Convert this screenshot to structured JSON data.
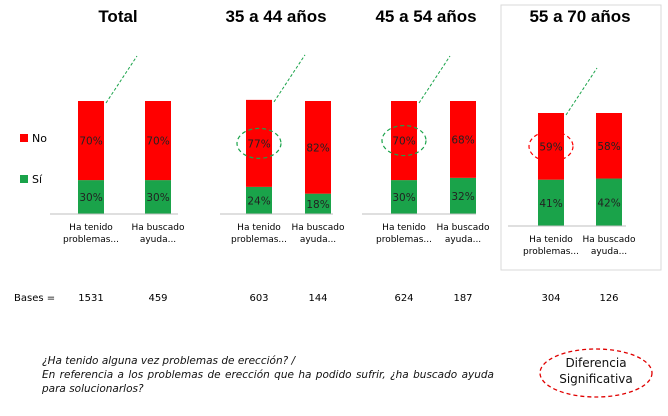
{
  "chart_data": {
    "type": "bar",
    "stacked": true,
    "legend": [
      {
        "name": "No",
        "color": "#ff0000"
      },
      {
        "name": "Sí",
        "color": "#1aa34a"
      }
    ],
    "bases_label": "Bases =",
    "panels": [
      {
        "title": "Total",
        "categories": [
          "Ha tenido problemas...",
          "Ha buscado ayuda..."
        ],
        "series": [
          {
            "name": "Sí",
            "values": [
              30,
              30
            ],
            "labels": [
              "30%",
              "30%"
            ]
          },
          {
            "name": "No",
            "values": [
              70,
              70
            ],
            "labels": [
              "70%",
              "70%"
            ]
          }
        ],
        "bases": [
          "1531",
          "459"
        ],
        "significant_circle": false
      },
      {
        "title": "35 a 44 años",
        "categories": [
          "Ha tenido problemas...",
          "Ha buscado ayuda..."
        ],
        "series": [
          {
            "name": "Sí",
            "values": [
              24,
              18
            ],
            "labels": [
              "24%",
              "18%"
            ]
          },
          {
            "name": "No",
            "values": [
              77,
              82
            ],
            "labels": [
              "77%",
              "82%"
            ]
          }
        ],
        "bases": [
          "603",
          "144"
        ],
        "significant_circle": true,
        "circle_color": "#1aa34a"
      },
      {
        "title": "45 a 54 años",
        "categories": [
          "Ha tenido problemas...",
          "Ha buscado ayuda..."
        ],
        "series": [
          {
            "name": "Sí",
            "values": [
              30,
              32
            ],
            "labels": [
              "30%",
              "32%"
            ]
          },
          {
            "name": "No",
            "values": [
              70,
              68
            ],
            "labels": [
              "70%",
              "68%"
            ]
          }
        ],
        "bases": [
          "624",
          "187"
        ],
        "significant_circle": true,
        "circle_color": "#1aa34a"
      },
      {
        "title": "55 a 70 años",
        "categories": [
          "Ha tenido problemas...",
          "Ha buscado ayuda..."
        ],
        "series": [
          {
            "name": "Sí",
            "values": [
              41,
              42
            ],
            "labels": [
              "41%",
              "42%"
            ]
          },
          {
            "name": "No",
            "values": [
              59,
              58
            ],
            "labels": [
              "59%",
              "58%"
            ]
          }
        ],
        "bases": [
          "304",
          "126"
        ],
        "significant_circle": true,
        "circle_color": "#ff0000"
      }
    ]
  },
  "footer": {
    "question_line1": "¿Ha tenido alguna vez problemas de erección? /",
    "question_line2": "En referencia a los problemas de erección que ha podido sufrir, ¿ha buscado ayuda para solucionarlos?",
    "significance_label_line1": "Diferencia",
    "significance_label_line2": "Significativa",
    "significance_color": "#e00000"
  }
}
